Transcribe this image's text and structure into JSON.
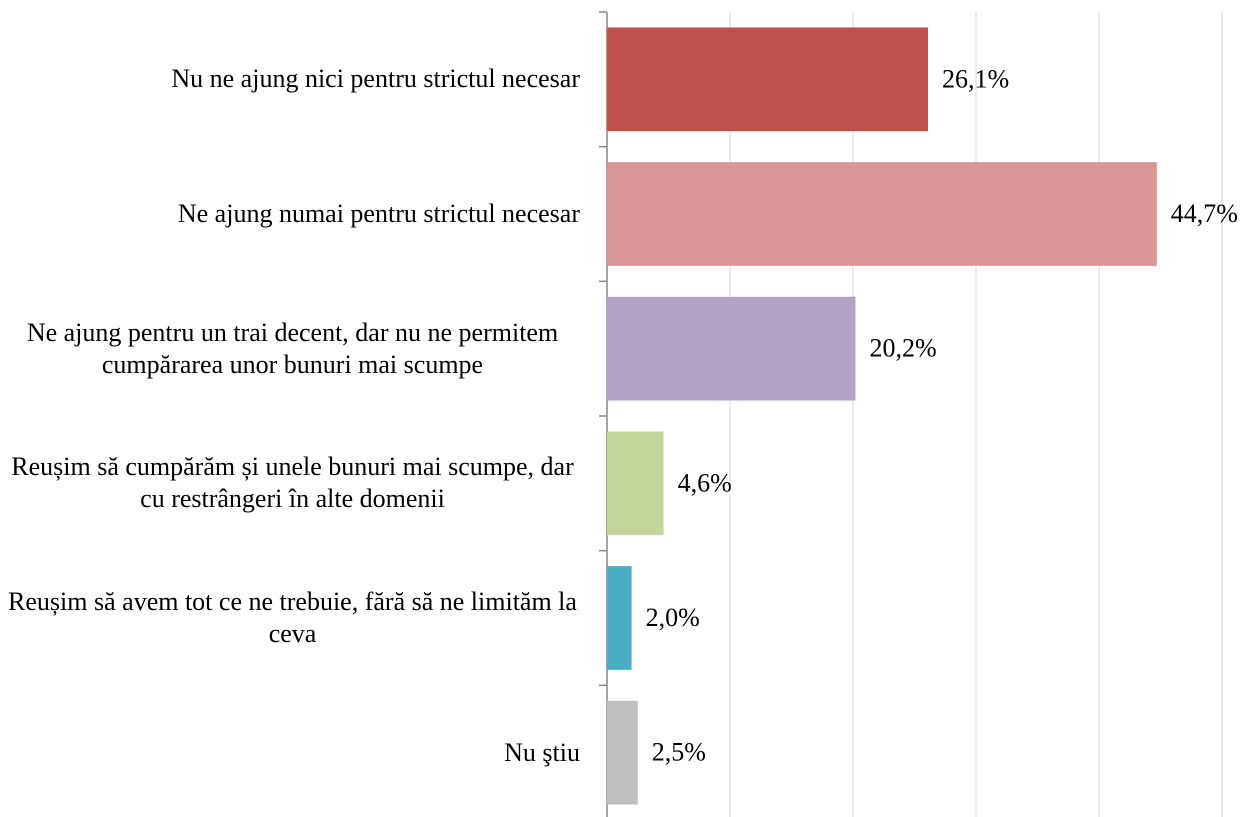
{
  "chart_data": {
    "type": "barh",
    "categories": [
      "Nu ne ajung nici pentru strictul necesar",
      "Ne ajung numai pentru strictul necesar",
      "Ne ajung pentru un trai decent, dar nu ne permitem cumpărarea unor bunuri mai scumpe",
      "Reușim să cumpărăm și unele bunuri mai scumpe, dar cu restrângeri în alte domenii",
      "Reușim să avem tot ce ne trebuie, fără să ne limităm la ceva",
      "Nu ştiu"
    ],
    "values": [
      26.1,
      44.7,
      20.2,
      4.6,
      2.0,
      2.5
    ],
    "value_labels": [
      "26,1%",
      "44,7%",
      "20,2%",
      "4,6%",
      "2,0%",
      "2,5%"
    ],
    "colors": [
      "#c0504d",
      "#d99694",
      "#b3a2c7",
      "#c3d69b",
      "#4bacc6",
      "#bfbfbf"
    ],
    "xlim": [
      0,
      50
    ],
    "xticks": [
      0,
      10,
      20,
      30,
      40,
      50
    ],
    "xtick_labels": false,
    "grid": true
  }
}
